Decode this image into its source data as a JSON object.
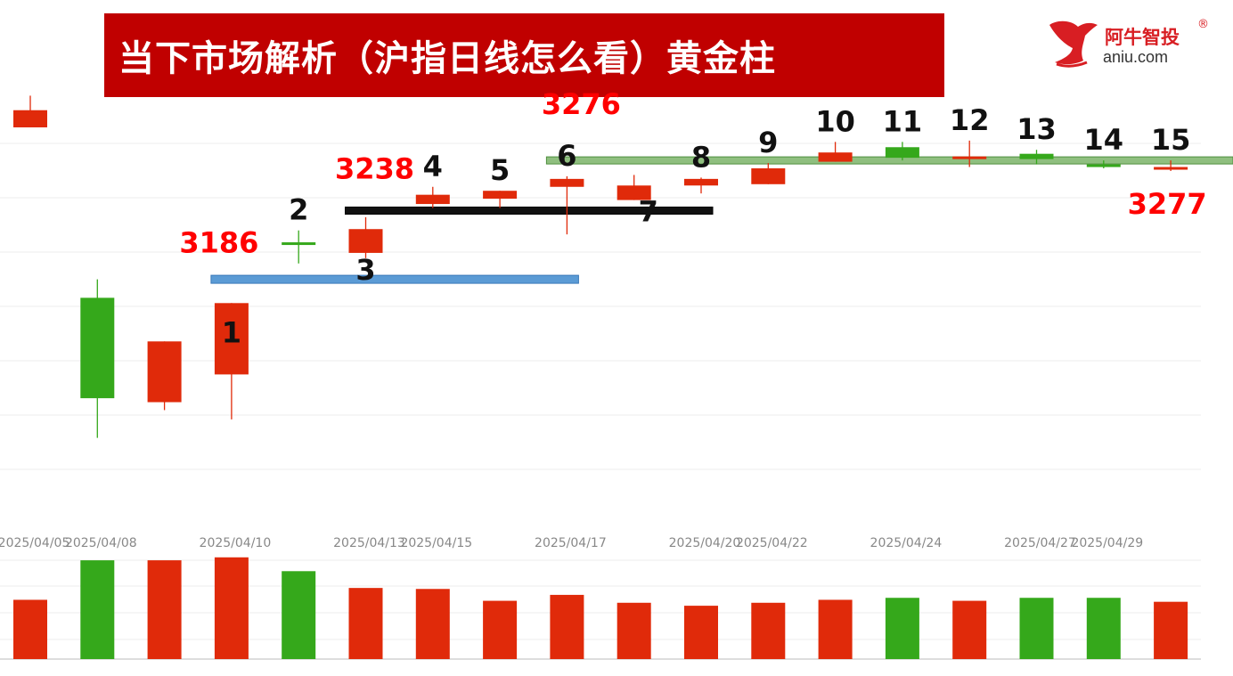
{
  "header": {
    "title": "当下市场解析（沪指日线怎么看）黄金柱"
  },
  "logo": {
    "name_cn": "阿牛智投",
    "registered": "®",
    "domain": "aniu.com",
    "brand_color": "#d81e23",
    "icon": "bull-head-icon"
  },
  "colors": {
    "up": "#e02a0a",
    "down": "#35a81b",
    "banner": "#c00000",
    "annotation_red": "#ff0000",
    "line_blue": "#5b9bd5",
    "line_black": "#111111",
    "line_green": "#8fbf7f"
  },
  "chart_data": {
    "type": "candlestick",
    "x_tick_labels": [
      "2025/04/05",
      "2025/04/08",
      "2025/04/10",
      "2025/04/13",
      "2025/04/15",
      "2025/04/17",
      "2025/04/20",
      "2025/04/22",
      "2025/04/24",
      "2025/04/27",
      "2025/04/29"
    ],
    "ylim": [
      3030,
      3330
    ],
    "candles": [
      {
        "open": 3301,
        "close": 3314,
        "high": 3325,
        "low": 3301,
        "dir": "up",
        "label": ""
      },
      {
        "open": 3172,
        "close": 3096,
        "high": 3186,
        "low": 3066,
        "dir": "down",
        "label": ""
      },
      {
        "open": 3093,
        "close": 3139,
        "high": 3139,
        "low": 3087,
        "dir": "up",
        "label": ""
      },
      {
        "open": 3114,
        "close": 3168,
        "high": 3168,
        "low": 3080,
        "dir": "up",
        "label": "1"
      },
      {
        "open": 3214,
        "close": 3212,
        "high": 3223,
        "low": 3198,
        "dir": "down",
        "label": "2"
      },
      {
        "open": 3206,
        "close": 3224,
        "high": 3233,
        "low": 3202,
        "dir": "up",
        "label": "3"
      },
      {
        "open": 3243,
        "close": 3250,
        "high": 3256,
        "low": 3240,
        "dir": "up",
        "label": "4"
      },
      {
        "open": 3247,
        "close": 3253,
        "high": 3253,
        "low": 3240,
        "dir": "up",
        "label": "5"
      },
      {
        "open": 3256,
        "close": 3262,
        "high": 3264,
        "low": 3220,
        "dir": "up",
        "label": "6"
      },
      {
        "open": 3246,
        "close": 3257,
        "high": 3265,
        "low": 3246,
        "dir": "up",
        "label": "7"
      },
      {
        "open": 3257,
        "close": 3262,
        "high": 3263,
        "low": 3251,
        "dir": "up",
        "label": "8"
      },
      {
        "open": 3258,
        "close": 3270,
        "high": 3274,
        "low": 3258,
        "dir": "up",
        "label": "9"
      },
      {
        "open": 3275,
        "close": 3282,
        "high": 3290,
        "low": 3275,
        "dir": "up",
        "label": "10"
      },
      {
        "open": 3286,
        "close": 3278,
        "high": 3290,
        "low": 3276,
        "dir": "down",
        "label": "11"
      },
      {
        "open": 3277,
        "close": 3279,
        "high": 3291,
        "low": 3271,
        "dir": "up",
        "label": "12"
      },
      {
        "open": 3281,
        "close": 3277,
        "high": 3284,
        "low": 3273,
        "dir": "down",
        "label": "13"
      },
      {
        "open": 3273,
        "close": 3271,
        "high": 3276,
        "low": 3270,
        "dir": "down",
        "label": "14"
      },
      {
        "open": 3270,
        "close": 3271,
        "high": 3276,
        "low": 3268,
        "dir": "up",
        "label": "15"
      }
    ],
    "volume": {
      "ylim": [
        0,
        110
      ],
      "values": [
        60,
        100,
        100,
        103,
        89,
        72,
        71,
        59,
        65,
        57,
        54,
        57,
        60,
        62,
        59,
        62,
        62,
        58
      ]
    },
    "annotations": [
      {
        "text": "3186",
        "near_candle": 3
      },
      {
        "text": "3238",
        "near_candle": 5
      },
      {
        "text": "3276",
        "near_candle": 8
      },
      {
        "text": "3277",
        "near_candle": 17
      }
    ],
    "reference_lines": [
      {
        "value": 3186,
        "from_candle": 3,
        "to_candle": 8,
        "color": "blue"
      },
      {
        "value": 3238,
        "from_candle": 5,
        "to_candle": 10,
        "color": "black"
      },
      {
        "value": 3276,
        "from_candle": 8,
        "to_candle": 17,
        "color": "green"
      }
    ],
    "grid": true,
    "legend": "none"
  }
}
